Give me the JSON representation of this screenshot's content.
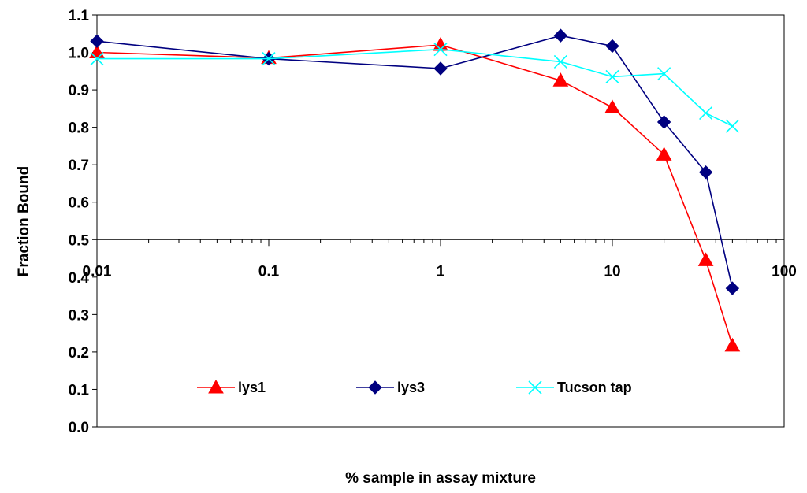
{
  "chart_data": {
    "type": "line",
    "title": "",
    "xlabel": "% sample in assay mixture",
    "ylabel": "Fraction Bound",
    "xscale": "log",
    "xlim": [
      0.01,
      100
    ],
    "ylim": [
      0.0,
      1.1
    ],
    "x_axis_crosses_y_at": 0.5,
    "x_tick_labels": [
      "0.01",
      "0.1",
      "1",
      "10",
      "100"
    ],
    "x_ticks": [
      0.01,
      0.1,
      1,
      10,
      100
    ],
    "y_tick_labels": [
      "0.0",
      "0.1",
      "0.2",
      "0.3",
      "0.4",
      "0.5",
      "0.6",
      "0.7",
      "0.8",
      "0.9",
      "1.0",
      "1.1"
    ],
    "y_ticks": [
      0.0,
      0.1,
      0.2,
      0.3,
      0.4,
      0.5,
      0.6,
      0.7,
      0.8,
      0.9,
      1.0,
      1.1
    ],
    "grid": false,
    "legend_position": "bottom-center",
    "series": [
      {
        "name": "lys1",
        "color": "#ff0000",
        "marker": "triangle",
        "x": [
          0.01,
          0.1,
          1,
          5,
          10,
          20,
          35,
          50
        ],
        "y": [
          1.0,
          0.985,
          1.02,
          0.925,
          0.853,
          0.727,
          0.445,
          0.217
        ]
      },
      {
        "name": "lys3",
        "color": "#000080",
        "marker": "diamond",
        "x": [
          0.01,
          0.1,
          1,
          5,
          10,
          20,
          35,
          50
        ],
        "y": [
          1.03,
          0.983,
          0.957,
          1.045,
          1.017,
          0.814,
          0.68,
          0.37
        ]
      },
      {
        "name": "Tucson tap",
        "color": "#00ffff",
        "marker": "x",
        "x": [
          0.01,
          0.1,
          1,
          5,
          10,
          20,
          35,
          50
        ],
        "y": [
          0.983,
          0.983,
          1.008,
          0.975,
          0.935,
          0.943,
          0.838,
          0.803
        ]
      }
    ]
  }
}
